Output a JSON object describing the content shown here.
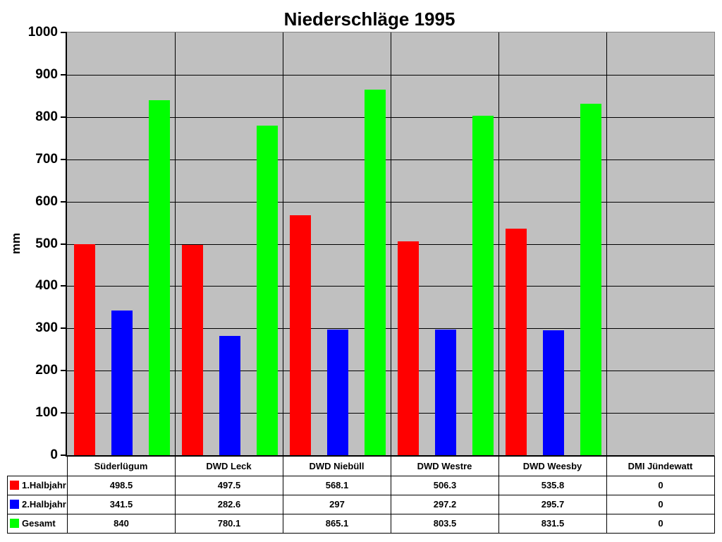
{
  "chart_data": {
    "type": "bar",
    "title": "Niederschläge 1995",
    "xlabel": "",
    "ylabel": "mm",
    "ylim": [
      0,
      1000
    ],
    "yticks": [
      0,
      100,
      200,
      300,
      400,
      500,
      600,
      700,
      800,
      900,
      1000
    ],
    "grid": true,
    "plot_background": "#c0c0c0",
    "gridline_color": "#000000",
    "plot_border_color": "#808080",
    "axis_color": "#000000",
    "text_color": "#000000",
    "legend_position": "table-left",
    "categories": [
      "Süderlügum",
      "DWD Leck",
      "DWD Niebüll",
      "DWD Westre",
      "DWD Weesby",
      "DMI Jündewatt"
    ],
    "series": [
      {
        "name": "1.Halbjahr",
        "color": "#ff0000",
        "values": [
          498.5,
          497.5,
          568.1,
          506.3,
          535.8,
          0
        ]
      },
      {
        "name": "2.Halbjahr",
        "color": "#0000ff",
        "values": [
          341.5,
          282.6,
          297,
          297.2,
          295.7,
          0
        ]
      },
      {
        "name": "Gesamt",
        "color": "#00ff00",
        "values": [
          840,
          780.1,
          865.1,
          803.5,
          831.5,
          0
        ]
      }
    ]
  }
}
